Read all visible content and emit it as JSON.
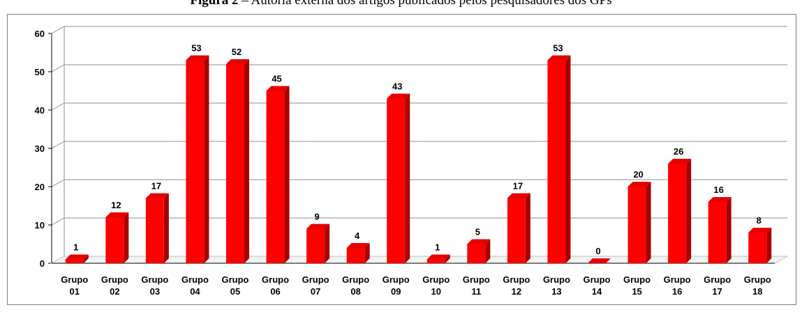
{
  "figure": {
    "title_bold": "Figura 2",
    "title_rest": " – Autoria externa dos artigos publicados pelos pesquisadores dos GPs"
  },
  "colors": {
    "bar_front": "#ff0000",
    "bar_side": "#a80000",
    "bar_top": "#e60000",
    "grid": "#8c8c8c",
    "floor": "#bfbfbf"
  },
  "chart_data": {
    "type": "bar",
    "style": "3d-column",
    "title": "",
    "xlabel": "",
    "ylabel": "",
    "ylim": [
      0,
      60
    ],
    "yticks": [
      0,
      10,
      20,
      30,
      40,
      50,
      60
    ],
    "grid": true,
    "legend": "none",
    "categories": [
      [
        "Grupo",
        "01"
      ],
      [
        "Grupo",
        "02"
      ],
      [
        "Grupo",
        "03"
      ],
      [
        "Grupo",
        "04"
      ],
      [
        "Grupo",
        "05"
      ],
      [
        "Grupo",
        "06"
      ],
      [
        "Grupo",
        "07"
      ],
      [
        "Grupo",
        "08"
      ],
      [
        "Grupo",
        "09"
      ],
      [
        "Grupo",
        "10"
      ],
      [
        "Grupo",
        "11"
      ],
      [
        "Grupo",
        "12"
      ],
      [
        "Grupo",
        "13"
      ],
      [
        "Grupo",
        "14"
      ],
      [
        "Grupo",
        "15"
      ],
      [
        "Grupo",
        "16"
      ],
      [
        "Grupo",
        "17"
      ],
      [
        "Grupo",
        "18"
      ]
    ],
    "values": [
      1,
      12,
      17,
      53,
      52,
      45,
      9,
      4,
      43,
      1,
      5,
      17,
      53,
      0,
      20,
      26,
      16,
      8
    ]
  }
}
